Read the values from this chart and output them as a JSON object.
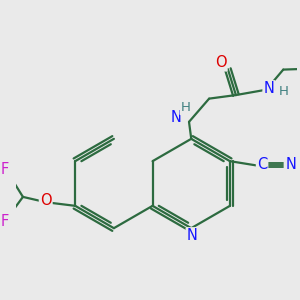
{
  "bg_color": "#eaeaea",
  "bond_color": "#2d6b40",
  "bond_width": 1.6,
  "atom_colors": {
    "N": "#1515ff",
    "O": "#dd0000",
    "F": "#cc22cc",
    "C": "#1515ff",
    "H": "#408080"
  },
  "font_size": 10.5
}
